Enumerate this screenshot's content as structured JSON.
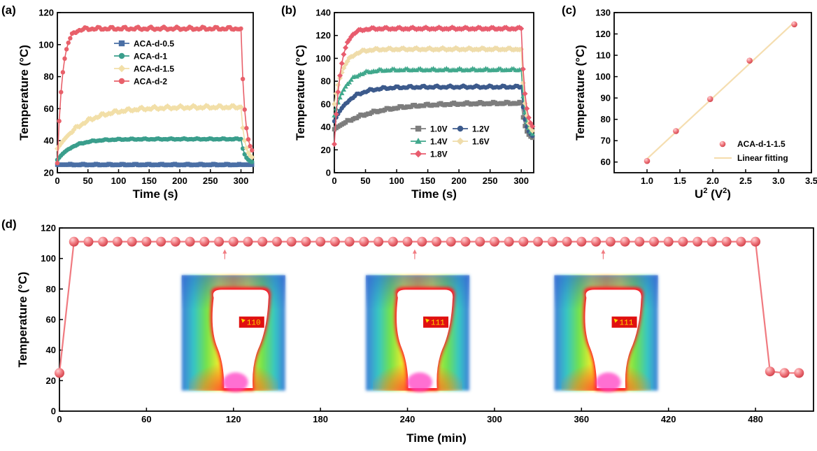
{
  "colors": {
    "blue": "#4a6fa5",
    "teal": "#3a9e8c",
    "cream": "#f2dfa8",
    "red": "#e8606a",
    "grey": "#7d7d7d",
    "navy": "#3c5a8c",
    "green": "#40a88c",
    "pale": "#efdcaa",
    "pink": "#e85c6e",
    "fit": "#f5deb0",
    "marker": "#f07a80"
  },
  "chart_data": [
    {
      "id": "a",
      "panel_label": "(a)",
      "type": "line",
      "xlabel": "Time (s)",
      "ylabel": "Temperature (°C)",
      "xlim": [
        0,
        320
      ],
      "ylim": [
        20,
        120
      ],
      "xticks": [
        "0",
        "50",
        "100",
        "150",
        "200",
        "250",
        "300"
      ],
      "yticks": [
        "20",
        "40",
        "60",
        "80",
        "100",
        "120"
      ],
      "legend": "upper-center",
      "series": [
        {
          "name": "ACA-d-0.5",
          "marker": "square",
          "color_key": "blue",
          "plateau": 25,
          "start": 25,
          "end": 25,
          "rise": 8
        },
        {
          "name": "ACA-d-1",
          "marker": "circle",
          "color_key": "teal",
          "plateau": 41,
          "start": 28,
          "end": 26,
          "rise": 25
        },
        {
          "name": "ACA-d-1.5",
          "marker": "diamond",
          "color_key": "cream",
          "plateau": 61,
          "start": 35,
          "end": 28,
          "rise": 45
        },
        {
          "name": "ACA-d-2",
          "marker": "circle",
          "color_key": "red",
          "plateau": 110,
          "start": 26,
          "end": 30,
          "rise": 8
        }
      ]
    },
    {
      "id": "b",
      "panel_label": "(b)",
      "type": "line",
      "xlabel": "Time (s)",
      "ylabel": "Temperature (°C)",
      "xlim": [
        0,
        320
      ],
      "ylim": [
        0,
        140
      ],
      "xticks": [
        "0",
        "50",
        "100",
        "150",
        "200",
        "250",
        "300"
      ],
      "yticks": [
        "0",
        "20",
        "40",
        "60",
        "80",
        "100",
        "120",
        "140"
      ],
      "legend": "lower-right",
      "series": [
        {
          "name": "1.0V",
          "marker": "square",
          "color_key": "grey",
          "plateau": 61,
          "start": 38,
          "end": 29,
          "rise": 60
        },
        {
          "name": "1.2V",
          "marker": "circle",
          "color_key": "navy",
          "plateau": 75,
          "start": 45,
          "end": 30,
          "rise": 25
        },
        {
          "name": "1.4V",
          "marker": "triangle",
          "color_key": "green",
          "plateau": 90,
          "start": 50,
          "end": 31,
          "rise": 18
        },
        {
          "name": "1.6V",
          "marker": "diamond",
          "color_key": "pale",
          "plateau": 108,
          "start": 60,
          "end": 33,
          "rise": 14
        },
        {
          "name": "1.8V",
          "marker": "diamond",
          "color_key": "pink",
          "plateau": 126,
          "start": 25,
          "end": 36,
          "rise": 10
        }
      ]
    },
    {
      "id": "c",
      "panel_label": "(c)",
      "type": "scatter",
      "xlabel": "U",
      "xlabel_sup": "2",
      "xlabel_unit_open": " (V",
      "xlabel_unit_sup": "2",
      "xlabel_unit_close": ")",
      "ylabel": "Temperature (°C)",
      "xlim": [
        0.5,
        3.5
      ],
      "ylim": [
        55,
        130
      ],
      "xticks": [
        "1.0",
        "1.5",
        "2.0",
        "2.5",
        "3.0",
        "3.5"
      ],
      "yticks": [
        "60",
        "70",
        "80",
        "90",
        "100",
        "110",
        "120",
        "130"
      ],
      "legend": "lower-right",
      "points": {
        "name": "ACA-d-1-1.5",
        "x": [
          1.0,
          1.44,
          1.96,
          2.56,
          3.24
        ],
        "y": [
          60.5,
          74.5,
          89.5,
          107.5,
          124.5
        ]
      },
      "fit": {
        "name": "Linear fitting",
        "x": [
          1.0,
          3.24
        ],
        "y": [
          61.5,
          125.5
        ]
      }
    },
    {
      "id": "d",
      "panel_label": "(d)",
      "type": "scatter",
      "xlabel": "Time (min)",
      "ylabel": "Temperature (°C)",
      "xlim": [
        0,
        520
      ],
      "ylim": [
        0,
        120
      ],
      "xticks": [
        "0",
        "60",
        "120",
        "180",
        "240",
        "300",
        "360",
        "420",
        "480"
      ],
      "yticks": [
        "0",
        "20",
        "40",
        "60",
        "80",
        "100",
        "120"
      ],
      "series": {
        "x_first": 0,
        "y_first": 25,
        "x_start": 10,
        "x_end": 480,
        "x_step": 10,
        "y_plateau": 111,
        "tail_x": [
          490,
          500,
          510
        ],
        "tail_y": [
          26,
          25,
          25
        ]
      },
      "arrows_at_min": [
        114,
        245,
        375
      ],
      "thermal_images": [
        {
          "temp": "110",
          "center_min": 120
        },
        {
          "temp": "111",
          "center_min": 247
        },
        {
          "temp": "111",
          "center_min": 377
        }
      ]
    }
  ]
}
